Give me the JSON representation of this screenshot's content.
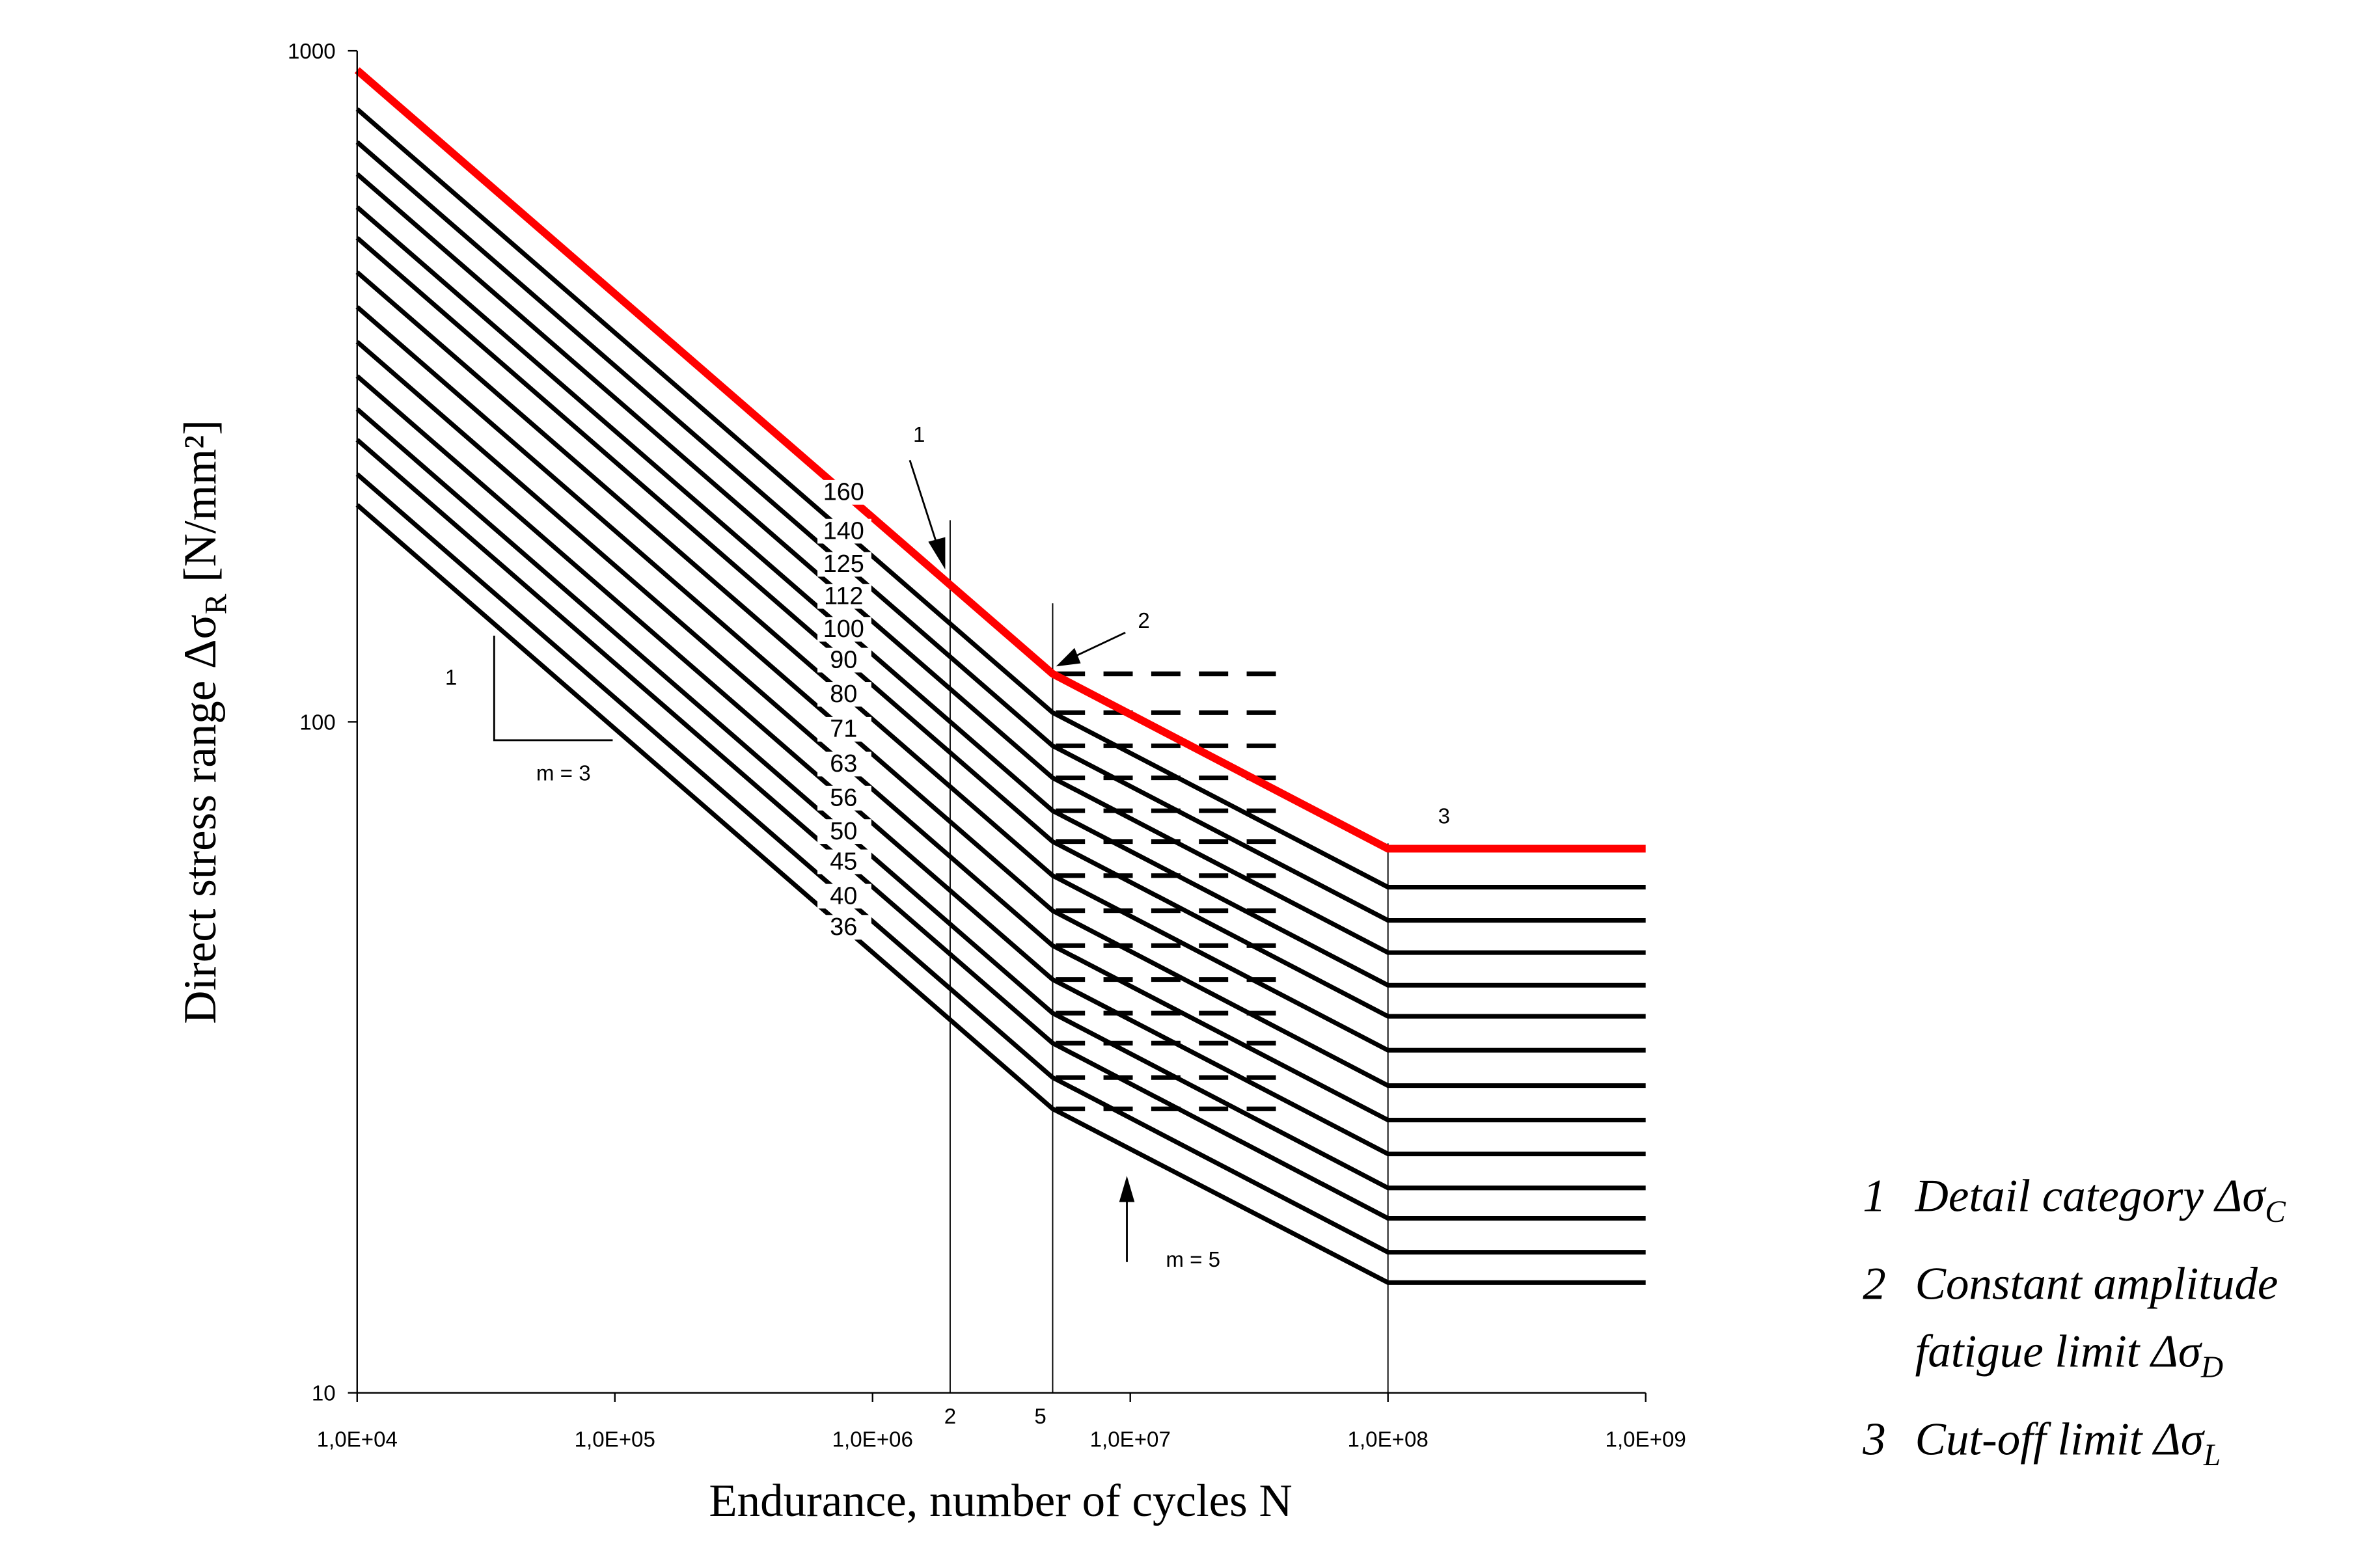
{
  "chart_data": {
    "type": "sn_curves",
    "x_label": "Endurance, number of cycles N",
    "y_label": {
      "main": "Direct stress range Δσ",
      "sub": "R",
      "tail": " [N/mm²]"
    },
    "xscale": "log",
    "yscale": "log",
    "xlim": [
      10000,
      1000000000
    ],
    "ylim": [
      10,
      1000
    ],
    "xticks": [
      {
        "value": 10000,
        "label": "1,0E+04"
      },
      {
        "value": 100000,
        "label": "1,0E+05"
      },
      {
        "value": 1000000,
        "label": "1,0E+06"
      },
      {
        "value": 10000000,
        "label": "1,0E+07"
      },
      {
        "value": 100000000,
        "label": "1,0E+08"
      },
      {
        "value": 1000000000,
        "label": "1,0E+09"
      }
    ],
    "yticks": [
      10,
      100,
      1000
    ],
    "x": [
      10000,
      5000000,
      100000000,
      1000000000
    ],
    "series": [
      {
        "name": "160",
        "color": "#ff0000",
        "values": [
          935.7,
          117.9,
          64.7,
          64.7
        ]
      },
      {
        "name": "140",
        "color": "#000000",
        "values": [
          818.7,
          103.2,
          56.7,
          56.7
        ]
      },
      {
        "name": "125",
        "color": "#000000",
        "values": [
          731.0,
          92.1,
          50.6,
          50.6
        ]
      },
      {
        "name": "112",
        "color": "#000000",
        "values": [
          655.0,
          82.5,
          45.3,
          45.3
        ]
      },
      {
        "name": "100",
        "color": "#000000",
        "values": [
          584.8,
          73.7,
          40.5,
          40.5
        ]
      },
      {
        "name": "90",
        "color": "#000000",
        "values": [
          526.3,
          66.3,
          36.4,
          36.4
        ]
      },
      {
        "name": "80",
        "color": "#000000",
        "values": [
          467.8,
          59.0,
          32.4,
          32.4
        ]
      },
      {
        "name": "71",
        "color": "#000000",
        "values": [
          415.2,
          52.3,
          28.7,
          28.7
        ]
      },
      {
        "name": "63",
        "color": "#000000",
        "values": [
          368.4,
          46.4,
          25.5,
          25.5
        ]
      },
      {
        "name": "56",
        "color": "#000000",
        "values": [
          327.5,
          41.3,
          22.7,
          22.7
        ]
      },
      {
        "name": "50",
        "color": "#000000",
        "values": [
          292.4,
          36.8,
          20.2,
          20.2
        ]
      },
      {
        "name": "45",
        "color": "#000000",
        "values": [
          263.2,
          33.2,
          18.2,
          18.2
        ]
      },
      {
        "name": "40",
        "color": "#000000",
        "values": [
          233.9,
          29.5,
          16.2,
          16.2
        ]
      },
      {
        "name": "36",
        "color": "#000000",
        "values": [
          210.5,
          26.5,
          14.6,
          14.6
        ]
      }
    ],
    "vlines": [
      2000000,
      5000000,
      100000000
    ],
    "vline_labels": [
      "2",
      "5",
      null
    ],
    "annotations": {
      "arrow1": "1",
      "arrow2": "2",
      "arrow3": "3",
      "slope_rise": "1",
      "slope_m3": "m = 3",
      "slope_m5": "m = 5"
    },
    "notes": [
      {
        "num": "1",
        "lines": [
          "Detail category Δσ"
        ],
        "sub": "C"
      },
      {
        "num": "2",
        "lines": [
          "Constant amplitude",
          "fatigue limit Δσ"
        ],
        "sub": "D"
      },
      {
        "num": "3",
        "lines": [
          "Cut-off limit Δσ"
        ],
        "sub": "L"
      }
    ]
  }
}
